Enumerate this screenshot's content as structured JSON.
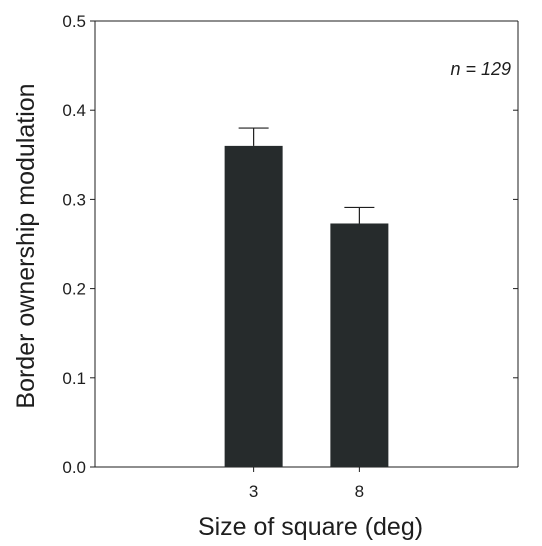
{
  "chart_data": {
    "type": "bar",
    "categories": [
      "3",
      "8"
    ],
    "values": [
      0.36,
      0.273
    ],
    "errors": [
      0.02,
      0.018
    ],
    "xlabel": "Size of square (deg)",
    "ylabel": "Border ownership modulation",
    "ylim": [
      0,
      0.5
    ],
    "yticks": [
      "0.0",
      "0.1",
      "0.2",
      "0.3",
      "0.4",
      "0.5"
    ],
    "annotation": "n = 129",
    "grid": false,
    "colors": {
      "bar": "#262b2c",
      "axis": "#1e1e1e",
      "errorbar": "#1e1e1e"
    }
  }
}
